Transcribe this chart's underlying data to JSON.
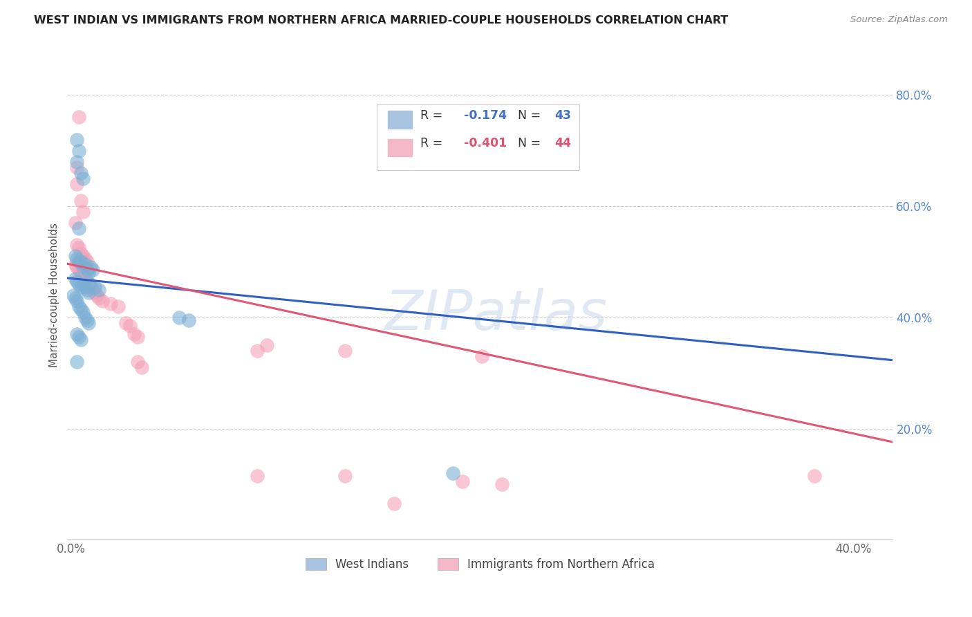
{
  "title": "WEST INDIAN VS IMMIGRANTS FROM NORTHERN AFRICA MARRIED-COUPLE HOUSEHOLDS CORRELATION CHART",
  "source": "Source: ZipAtlas.com",
  "ylabel": "Married-couple Households",
  "xlim": [
    -0.002,
    0.42
  ],
  "ylim": [
    0.0,
    0.88
  ],
  "x_ticks": [
    0.0,
    0.1,
    0.2,
    0.3,
    0.4
  ],
  "x_tick_labels": [
    "0.0%",
    "",
    "",
    "",
    "40.0%"
  ],
  "y_ticks": [
    0.2,
    0.4,
    0.6,
    0.8
  ],
  "y_tick_labels": [
    "20.0%",
    "40.0%",
    "60.0%",
    "80.0%"
  ],
  "series1_label": "West Indians",
  "series2_label": "Immigrants from Northern Africa",
  "series1_color": "#7bafd4",
  "series2_color": "#f4a0b8",
  "series1_line_color": "#3060c0",
  "series2_line_color": "#e05878",
  "legend_box_color": "#a8c4e0",
  "legend_pink_color": "#f4b8c8",
  "watermark": "ZIPatlas",
  "blue_R": -0.174,
  "blue_N": 43,
  "pink_R": -0.401,
  "pink_N": 44,
  "blue_intercept": 0.47,
  "blue_slope": -0.35,
  "pink_intercept": 0.495,
  "pink_slope": -0.76,
  "blue_points": [
    [
      0.003,
      0.72
    ],
    [
      0.004,
      0.7
    ],
    [
      0.003,
      0.68
    ],
    [
      0.005,
      0.66
    ],
    [
      0.006,
      0.65
    ],
    [
      0.004,
      0.56
    ],
    [
      0.002,
      0.51
    ],
    [
      0.003,
      0.505
    ],
    [
      0.004,
      0.5
    ],
    [
      0.005,
      0.5
    ],
    [
      0.006,
      0.49
    ],
    [
      0.007,
      0.495
    ],
    [
      0.008,
      0.485
    ],
    [
      0.009,
      0.48
    ],
    [
      0.01,
      0.49
    ],
    [
      0.011,
      0.485
    ],
    [
      0.002,
      0.47
    ],
    [
      0.003,
      0.465
    ],
    [
      0.004,
      0.46
    ],
    [
      0.005,
      0.455
    ],
    [
      0.006,
      0.46
    ],
    [
      0.007,
      0.455
    ],
    [
      0.008,
      0.45
    ],
    [
      0.009,
      0.445
    ],
    [
      0.01,
      0.46
    ],
    [
      0.012,
      0.455
    ],
    [
      0.014,
      0.45
    ],
    [
      0.001,
      0.44
    ],
    [
      0.002,
      0.435
    ],
    [
      0.003,
      0.43
    ],
    [
      0.004,
      0.42
    ],
    [
      0.005,
      0.415
    ],
    [
      0.006,
      0.41
    ],
    [
      0.007,
      0.4
    ],
    [
      0.008,
      0.395
    ],
    [
      0.009,
      0.39
    ],
    [
      0.003,
      0.37
    ],
    [
      0.004,
      0.365
    ],
    [
      0.005,
      0.36
    ],
    [
      0.003,
      0.32
    ],
    [
      0.055,
      0.4
    ],
    [
      0.06,
      0.395
    ],
    [
      0.195,
      0.12
    ]
  ],
  "pink_points": [
    [
      0.004,
      0.76
    ],
    [
      0.003,
      0.67
    ],
    [
      0.003,
      0.64
    ],
    [
      0.005,
      0.61
    ],
    [
      0.006,
      0.59
    ],
    [
      0.002,
      0.57
    ],
    [
      0.003,
      0.53
    ],
    [
      0.004,
      0.525
    ],
    [
      0.005,
      0.515
    ],
    [
      0.006,
      0.51
    ],
    [
      0.007,
      0.505
    ],
    [
      0.008,
      0.5
    ],
    [
      0.002,
      0.495
    ],
    [
      0.003,
      0.49
    ],
    [
      0.004,
      0.485
    ],
    [
      0.005,
      0.48
    ],
    [
      0.006,
      0.475
    ],
    [
      0.007,
      0.47
    ],
    [
      0.008,
      0.465
    ],
    [
      0.009,
      0.46
    ],
    [
      0.01,
      0.455
    ],
    [
      0.011,
      0.45
    ],
    [
      0.012,
      0.445
    ],
    [
      0.013,
      0.44
    ],
    [
      0.014,
      0.435
    ],
    [
      0.016,
      0.43
    ],
    [
      0.02,
      0.425
    ],
    [
      0.024,
      0.42
    ],
    [
      0.028,
      0.39
    ],
    [
      0.03,
      0.385
    ],
    [
      0.032,
      0.37
    ],
    [
      0.034,
      0.365
    ],
    [
      0.034,
      0.32
    ],
    [
      0.036,
      0.31
    ],
    [
      0.14,
      0.34
    ],
    [
      0.14,
      0.115
    ],
    [
      0.2,
      0.105
    ],
    [
      0.21,
      0.33
    ],
    [
      0.22,
      0.1
    ],
    [
      0.095,
      0.34
    ],
    [
      0.165,
      0.065
    ],
    [
      0.38,
      0.115
    ],
    [
      0.095,
      0.115
    ],
    [
      0.1,
      0.35
    ]
  ]
}
